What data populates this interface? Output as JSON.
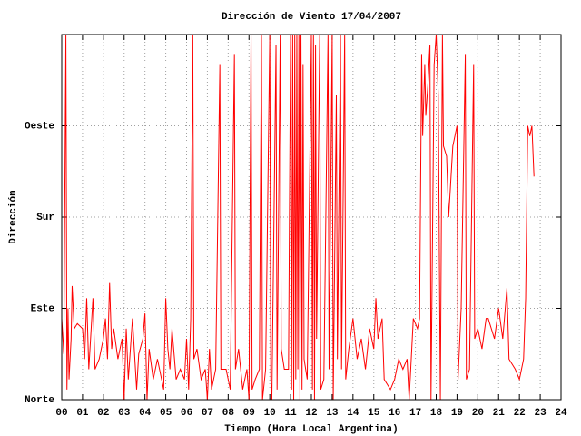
{
  "chart_data": {
    "type": "line",
    "title": "Dirección de Viento 17/04/2007",
    "x_label": "Tiempo (Hora Local Argentina)",
    "y_label": "Dirección",
    "xlim": [
      0,
      24
    ],
    "xticks": [
      {
        "value": 0,
        "label": "00"
      },
      {
        "value": 1,
        "label": "01"
      },
      {
        "value": 2,
        "label": "02"
      },
      {
        "value": 3,
        "label": "03"
      },
      {
        "value": 4,
        "label": "04"
      },
      {
        "value": 5,
        "label": "05"
      },
      {
        "value": 6,
        "label": "06"
      },
      {
        "value": 7,
        "label": "07"
      },
      {
        "value": 8,
        "label": "08"
      },
      {
        "value": 9,
        "label": "09"
      },
      {
        "value": 10,
        "label": "10"
      },
      {
        "value": 11,
        "label": "11"
      },
      {
        "value": 12,
        "label": "12"
      },
      {
        "value": 13,
        "label": "13"
      },
      {
        "value": 14,
        "label": "14"
      },
      {
        "value": 15,
        "label": "15"
      },
      {
        "value": 16,
        "label": "16"
      },
      {
        "value": 17,
        "label": "17"
      },
      {
        "value": 18,
        "label": "18"
      },
      {
        "value": 19,
        "label": "19"
      },
      {
        "value": 20,
        "label": "20"
      },
      {
        "value": 21,
        "label": "21"
      },
      {
        "value": 22,
        "label": "22"
      },
      {
        "value": 23,
        "label": "23"
      },
      {
        "value": 24,
        "label": "24"
      }
    ],
    "ylim": [
      0,
      360
    ],
    "yticks": [
      {
        "value": 0,
        "label": "Norte"
      },
      {
        "value": 90,
        "label": "Este"
      },
      {
        "value": 180,
        "label": "Sur"
      },
      {
        "value": 270,
        "label": "Oeste"
      }
    ],
    "grid": true,
    "x": [
      0.0,
      0.1,
      0.2,
      0.25,
      0.3,
      0.35,
      0.45,
      0.5,
      0.6,
      0.75,
      1.0,
      1.1,
      1.2,
      1.3,
      1.5,
      1.6,
      1.8,
      2.0,
      2.1,
      2.2,
      2.3,
      2.4,
      2.5,
      2.7,
      2.9,
      3.0,
      3.1,
      3.2,
      3.4,
      3.6,
      3.7,
      3.9,
      4.0,
      4.1,
      4.2,
      4.4,
      4.6,
      4.9,
      5.0,
      5.1,
      5.2,
      5.3,
      5.5,
      5.7,
      5.9,
      6.0,
      6.1,
      6.2,
      6.3,
      6.35,
      6.5,
      6.7,
      6.9,
      7.0,
      7.1,
      7.2,
      7.4,
      7.6,
      7.65,
      7.9,
      8.1,
      8.3,
      8.35,
      8.5,
      8.7,
      8.9,
      9.0,
      9.1,
      9.15,
      9.3,
      9.5,
      9.6,
      9.65,
      9.8,
      10.0,
      10.05,
      10.1,
      10.3,
      10.35,
      10.5,
      10.55,
      10.7,
      10.9,
      11.0,
      11.05,
      11.1,
      11.15,
      11.2,
      11.25,
      11.3,
      11.35,
      11.4,
      11.45,
      11.5,
      11.55,
      11.6,
      11.65,
      11.8,
      12.0,
      12.05,
      12.1,
      12.15,
      12.2,
      12.25,
      12.4,
      12.45,
      12.6,
      12.8,
      12.85,
      13.0,
      13.05,
      13.2,
      13.25,
      13.4,
      13.45,
      13.6,
      13.65,
      13.8,
      14.0,
      14.2,
      14.4,
      14.6,
      14.8,
      15.0,
      15.1,
      15.2,
      15.4,
      15.5,
      15.8,
      16.0,
      16.2,
      16.4,
      16.6,
      16.7,
      16.9,
      17.1,
      17.2,
      17.3,
      17.35,
      17.45,
      17.5,
      17.6,
      17.7,
      17.75,
      17.9,
      18.0,
      18.1,
      18.2,
      18.3,
      18.35,
      18.5,
      18.6,
      18.8,
      18.9,
      19.0,
      19.05,
      19.2,
      19.4,
      19.45,
      19.6,
      19.8,
      19.85,
      20.0,
      20.2,
      20.4,
      20.5,
      20.8,
      21.0,
      21.2,
      21.4,
      21.5,
      21.8,
      22.0,
      22.2,
      22.3,
      22.4,
      22.5,
      22.6,
      22.7
    ],
    "series": [
      {
        "color": "#ff0000",
        "values": [
          80,
          45,
          360,
          10,
          90,
          20,
          60,
          112,
          70,
          75,
          70,
          40,
          100,
          30,
          100,
          30,
          40,
          60,
          80,
          40,
          115,
          50,
          70,
          40,
          60,
          0,
          70,
          20,
          80,
          10,
          45,
          60,
          85,
          0,
          50,
          20,
          40,
          10,
          100,
          50,
          30,
          70,
          20,
          30,
          20,
          60,
          10,
          80,
          360,
          40,
          50,
          20,
          30,
          0,
          50,
          10,
          30,
          330,
          30,
          30,
          10,
          340,
          30,
          50,
          10,
          30,
          0,
          360,
          10,
          20,
          30,
          360,
          0,
          30,
          360,
          20,
          0,
          350,
          10,
          360,
          50,
          30,
          30,
          360,
          10,
          360,
          0,
          360,
          20,
          360,
          30,
          360,
          0,
          360,
          10,
          330,
          40,
          20,
          360,
          10,
          360,
          0,
          350,
          60,
          360,
          10,
          20,
          360,
          30,
          360,
          0,
          300,
          40,
          360,
          30,
          360,
          20,
          50,
          80,
          40,
          60,
          30,
          70,
          50,
          100,
          60,
          80,
          20,
          10,
          20,
          40,
          30,
          40,
          0,
          80,
          70,
          80,
          340,
          260,
          330,
          280,
          310,
          350,
          0,
          330,
          360,
          300,
          0,
          360,
          250,
          240,
          180,
          250,
          260,
          270,
          20,
          90,
          340,
          20,
          30,
          330,
          60,
          70,
          50,
          80,
          80,
          60,
          90,
          60,
          110,
          40,
          30,
          20,
          40,
          100,
          270,
          260,
          270,
          220
        ]
      }
    ]
  }
}
